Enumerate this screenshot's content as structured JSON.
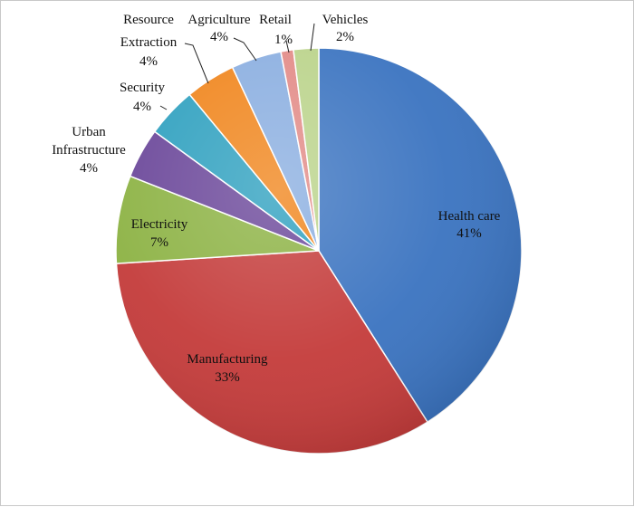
{
  "chart_data": {
    "type": "pie",
    "title": "",
    "slices": [
      {
        "label": "Health care",
        "value": 41,
        "value_label": "41%",
        "color": "#3a73c0"
      },
      {
        "label": "Manufacturing",
        "value": 33,
        "value_label": "33%",
        "color": "#c43b3a"
      },
      {
        "label": "Electricity",
        "value": 7,
        "value_label": "7%",
        "color": "#8cb243"
      },
      {
        "label": "Urban Infrastructure",
        "value": 4,
        "value_label": "4%",
        "color": "#6a4699"
      },
      {
        "label": "Security",
        "value": 4,
        "value_label": "4%",
        "color": "#2ea0bf"
      },
      {
        "label": "Resource Extraction",
        "value": 4,
        "value_label": "4%",
        "color": "#f0851c"
      },
      {
        "label": "Agriculture",
        "value": 4,
        "value_label": "4%",
        "color": "#8aaee0"
      },
      {
        "label": "Retail",
        "value": 1,
        "value_label": "1%",
        "color": "#e28a86"
      },
      {
        "label": "Vehicles",
        "value": 2,
        "value_label": "2%",
        "color": "#bad38a"
      }
    ],
    "start_angle_deg": 0,
    "direction": "clockwise",
    "legend": "none",
    "labels": "data labels with category name and percentage"
  }
}
